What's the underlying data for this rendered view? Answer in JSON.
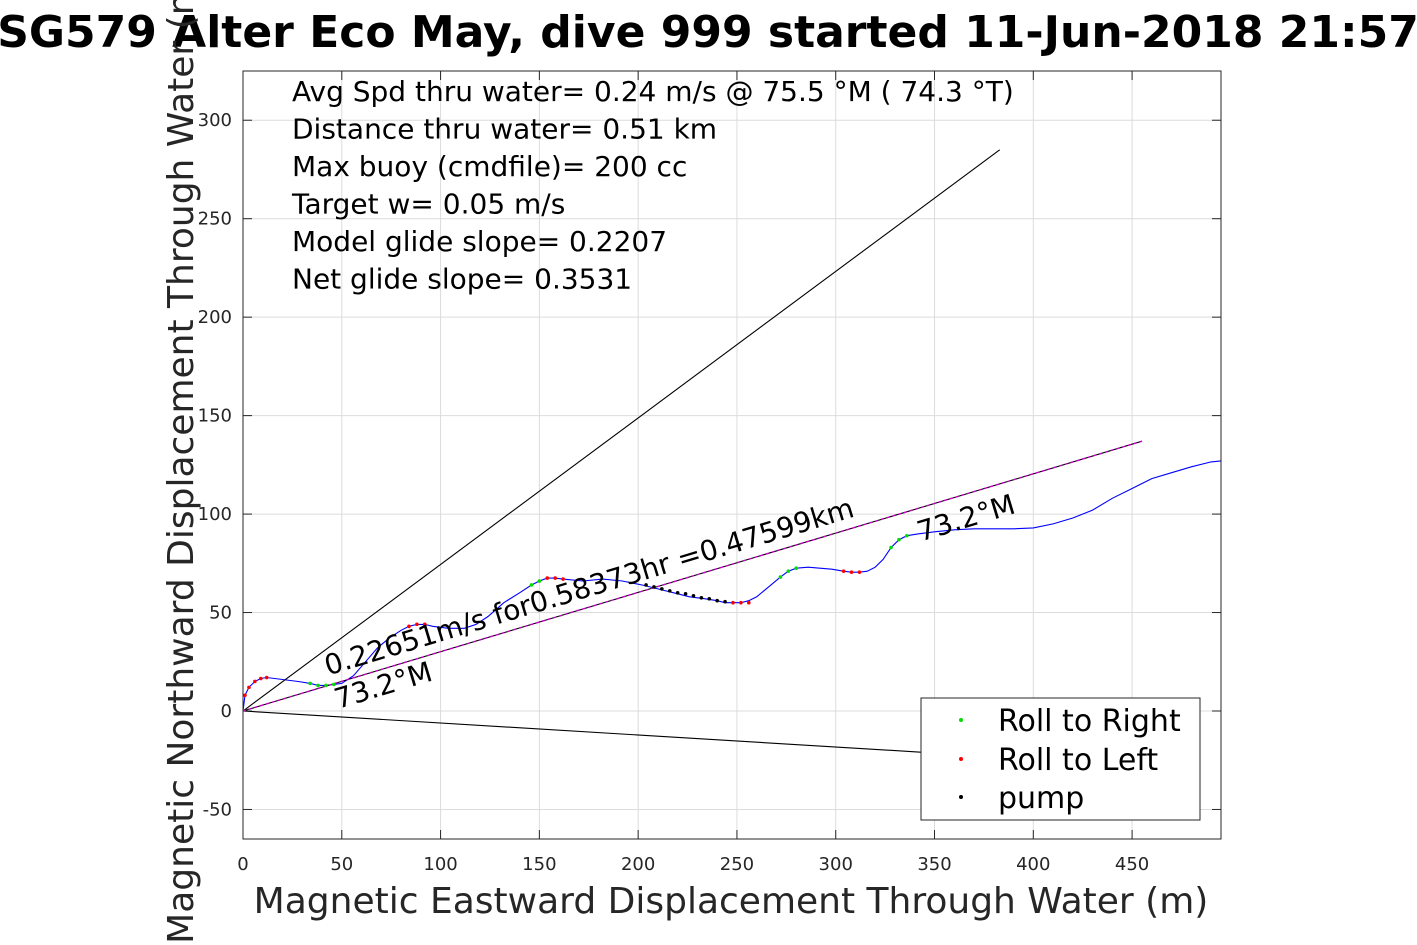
{
  "chart_data": {
    "type": "line",
    "title": "SG579 Alter Eco May, dive 999 started 11-Jun-2018 21:57",
    "xlabel": "Magnetic Eastward Displacement Through Water (m)",
    "ylabel": "Magnetic Northward Displacement Through Water (m)",
    "xlim": [
      0,
      495
    ],
    "ylim": [
      -65,
      325
    ],
    "xticks": [
      0,
      50,
      100,
      150,
      200,
      250,
      300,
      350,
      400,
      450
    ],
    "yticks": [
      -50,
      0,
      50,
      100,
      150,
      200,
      250,
      300
    ],
    "grid": true,
    "legend_position": "bottom-right",
    "info_lines": [
      "Avg Spd thru water=  0.24 m/s @  75.5 °M ( 74.3 °T)",
      "Distance thru water=  0.51 km",
      "Max buoy (cmdfile)= 200 cc",
      "Target w= 0.05 m/s",
      "Model glide slope= 0.2207",
      "Net glide slope= 0.3531"
    ],
    "annotations": [
      {
        "text": "0.22651m/s for0.58373hr =0.47599km",
        "x": 43,
        "y": 18,
        "angle": 16.8
      },
      {
        "text": "73.2°M",
        "x": 48,
        "y": 1,
        "angle": 16.8
      },
      {
        "text": "73.2°M",
        "x": 343,
        "y": 86,
        "angle": 16.8
      }
    ],
    "series": [
      {
        "name": "",
        "style": "line",
        "color": "#0000ff",
        "x": [
          0,
          1,
          3,
          6,
          9,
          12,
          20,
          28,
          34,
          38,
          42,
          46,
          50,
          56,
          62,
          68,
          74,
          80,
          84,
          88,
          92,
          96,
          104,
          112,
          118,
          124,
          132,
          140,
          146,
          150,
          154,
          158,
          162,
          172,
          182,
          192,
          202,
          210,
          218,
          226,
          234,
          240,
          244,
          248,
          252,
          256,
          260,
          266,
          272,
          276,
          280,
          286,
          292,
          298,
          304,
          308,
          312,
          316,
          320,
          324,
          328,
          332,
          336,
          342,
          350,
          360,
          370,
          380,
          390,
          400,
          410,
          420,
          430,
          440,
          450,
          460,
          470,
          480,
          490,
          495
        ],
        "y": [
          0,
          8,
          12,
          15,
          16.5,
          17,
          16,
          15,
          14,
          13,
          13,
          13.5,
          14,
          18,
          25,
          32,
          37,
          41,
          43,
          44,
          44,
          43,
          42,
          42,
          44,
          48,
          55,
          60,
          64,
          66,
          67.5,
          67.5,
          67,
          66,
          67,
          66,
          64,
          62,
          60,
          58,
          57,
          56,
          55,
          55,
          55,
          56,
          58,
          63,
          68,
          71,
          72.5,
          73,
          72.5,
          72,
          71,
          70.5,
          70.5,
          71,
          73,
          77,
          83,
          87,
          89,
          90,
          91,
          92,
          92.5,
          92.5,
          92.5,
          93,
          95,
          98,
          102,
          108,
          113,
          118,
          121,
          124,
          126.5,
          127
        ]
      },
      {
        "name": "",
        "style": "line",
        "color": "#000000",
        "x": [
          0,
          383
        ],
        "y": [
          0,
          285
        ]
      },
      {
        "name": "",
        "style": "line",
        "color": "#000000",
        "x": [
          0,
          455
        ],
        "y": [
          0,
          137
        ]
      },
      {
        "name": "",
        "style": "line",
        "color": "#000000",
        "x": [
          0,
          345
        ],
        "y": [
          0,
          -21
        ]
      },
      {
        "name": "",
        "style": "dashed",
        "color": "#cc00cc",
        "x": [
          0,
          455
        ],
        "y": [
          0,
          137
        ]
      },
      {
        "name": "Roll to Right",
        "style": "points",
        "color": "#00dd00",
        "x": [
          34,
          38,
          42,
          46,
          146,
          150,
          272,
          276,
          280,
          328,
          332,
          336
        ],
        "y": [
          14,
          13,
          13,
          13.5,
          64,
          66,
          68,
          71,
          72.5,
          83,
          87,
          89
        ]
      },
      {
        "name": "Roll to Left",
        "style": "points",
        "color": "#ff0000",
        "x": [
          1,
          3,
          6,
          9,
          12,
          84,
          88,
          92,
          154,
          158,
          162,
          248,
          252,
          256,
          304,
          308,
          312
        ],
        "y": [
          8,
          12,
          15,
          16.5,
          17,
          43,
          44,
          44,
          67.5,
          67.5,
          67,
          55,
          55,
          55,
          71,
          70.5,
          70.5
        ]
      },
      {
        "name": "pump",
        "style": "points",
        "color": "#000000",
        "x": [
          204,
          208,
          212,
          216,
          220,
          224,
          228,
          232,
          236,
          240,
          244
        ],
        "y": [
          64,
          63,
          62,
          61,
          60,
          59.5,
          58.5,
          57.5,
          57,
          56,
          55.5
        ]
      }
    ]
  }
}
